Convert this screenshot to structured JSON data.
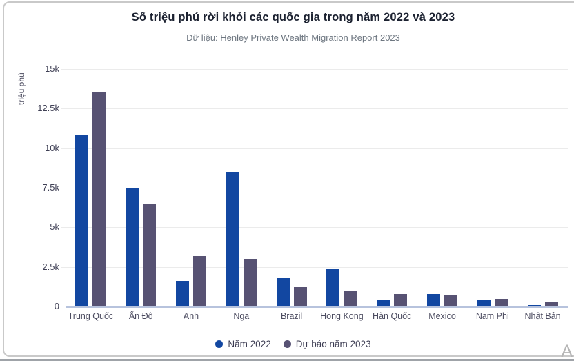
{
  "header": {
    "title": "Số triệu phú rời khỏi các quốc gia trong năm 2022 và 2023",
    "subtitle": "Dữ liệu: Henley Private Wealth Migration Report 2023"
  },
  "chart_data": {
    "type": "bar",
    "categories": [
      "Trung Quốc",
      "Ấn Độ",
      "Anh",
      "Nga",
      "Brazil",
      "Hong Kong",
      "Hàn Quốc",
      "Mexico",
      "Nam Phi",
      "Nhật Bản"
    ],
    "series": [
      {
        "name": "Năm 2022",
        "color": "#1247a1",
        "values": [
          10800,
          7500,
          1600,
          8500,
          1800,
          2400,
          400,
          800,
          400,
          100
        ]
      },
      {
        "name": "Dự báo năm 2023",
        "color": "#575273",
        "values": [
          13500,
          6500,
          3200,
          3000,
          1200,
          1000,
          800,
          700,
          500,
          300
        ]
      }
    ],
    "title": "Số triệu phú rời khỏi các quốc gia trong năm 2022 và 2023",
    "xlabel": "",
    "ylabel": "triệu phú",
    "ylim": [
      0,
      15000
    ],
    "yticks": [
      0,
      2500,
      5000,
      7500,
      10000,
      12500,
      15000
    ],
    "ytick_labels": [
      "0",
      "2.5k",
      "5k",
      "7.5k",
      "10k",
      "12.5k",
      "15k"
    ],
    "grid": true,
    "legend_position": "bottom"
  },
  "watermark": "A"
}
